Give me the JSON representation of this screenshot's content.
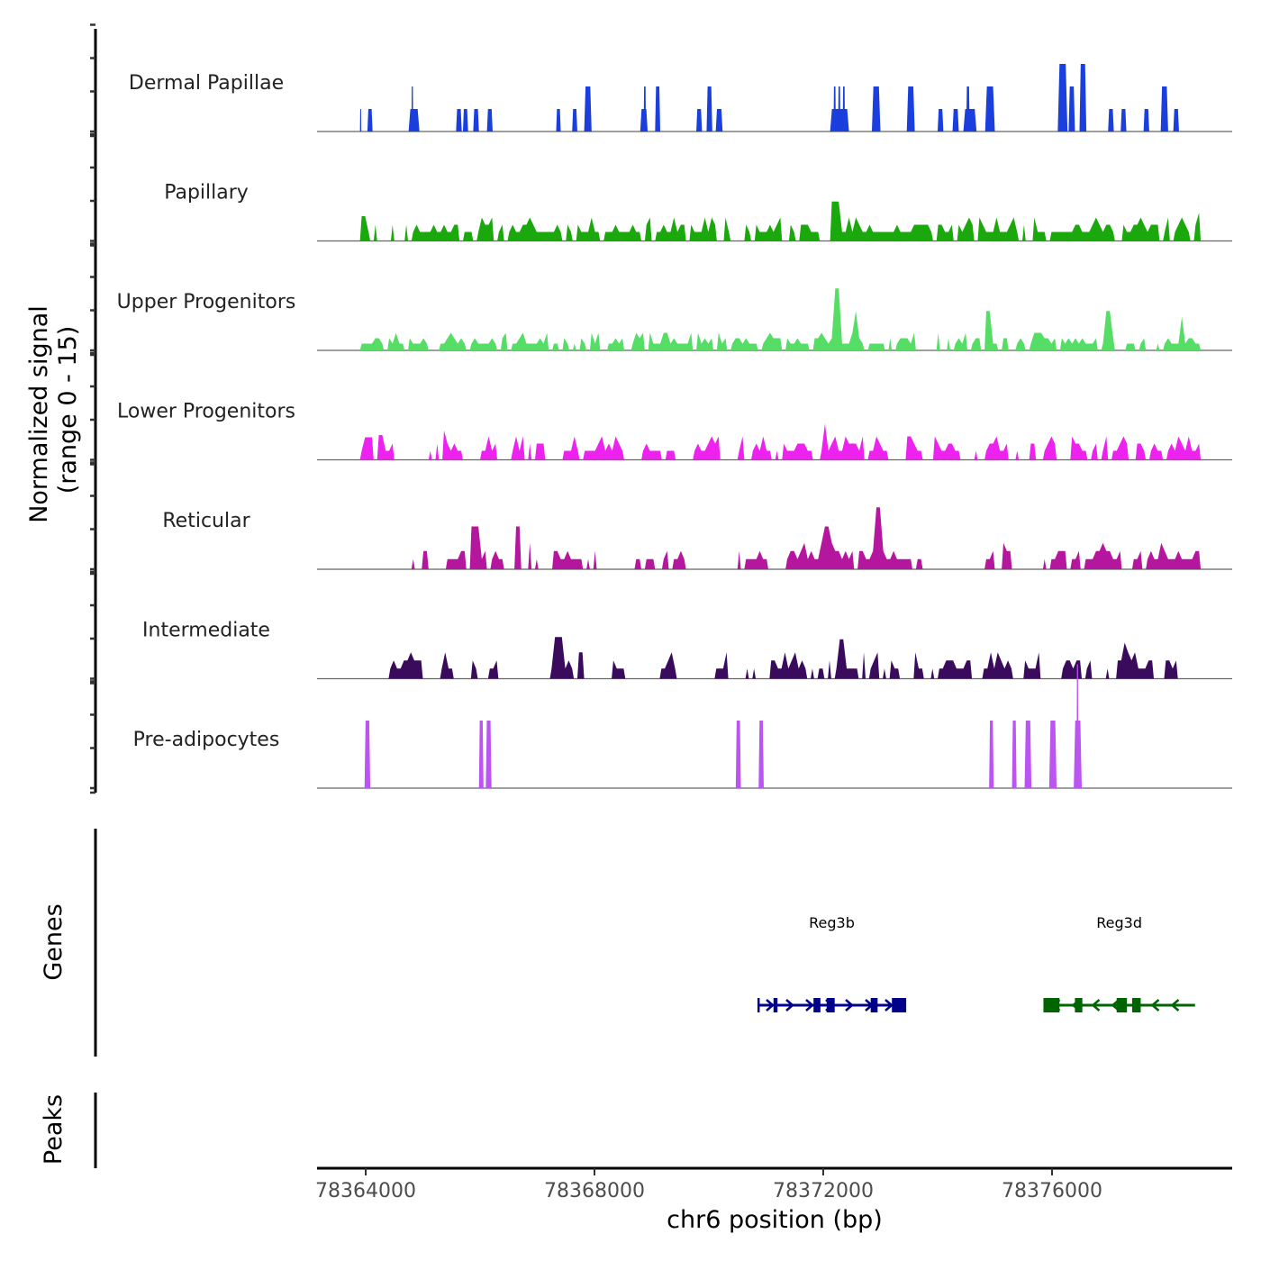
{
  "chart_data": {
    "type": "area",
    "title": "",
    "xlabel": "chr6 position (bp)",
    "ylabel_line1": "Normalized signal",
    "ylabel_line2": "(range 0 - 15)",
    "ylim": [
      0,
      15
    ],
    "xlim": [
      78363150,
      78379150
    ],
    "x_ticks": [
      78364000,
      78368000,
      78372000,
      78376000
    ],
    "x_tick_labels": [
      "78364000",
      "78368000",
      "78372000",
      "78376000"
    ],
    "grid": false,
    "panel_labels": {
      "genes": "Genes",
      "peaks": "Peaks"
    },
    "tracks": [
      {
        "name": "Dermal Papillae",
        "color": "#1a3fdc",
        "peaks": [
          [
            78363900,
            78363920,
            2.0
          ],
          [
            78364030,
            78364120,
            2.0
          ],
          [
            78364750,
            78364940,
            2.0
          ],
          [
            78364800,
            78364830,
            4.0
          ],
          [
            78365580,
            78365680,
            2.0
          ],
          [
            78365700,
            78365790,
            2.0
          ],
          [
            78365880,
            78365980,
            2.0
          ],
          [
            78366120,
            78366220,
            2.0
          ],
          [
            78367330,
            78367410,
            2.0
          ],
          [
            78367610,
            78367700,
            2.0
          ],
          [
            78367820,
            78367950,
            4.0
          ],
          [
            78368800,
            78368930,
            2.0
          ],
          [
            78368860,
            78368900,
            4.0
          ],
          [
            78369060,
            78369150,
            4.0
          ],
          [
            78369780,
            78369880,
            2.0
          ],
          [
            78369960,
            78370060,
            4.0
          ],
          [
            78370120,
            78370240,
            2.0
          ],
          [
            78372120,
            78372450,
            2.0
          ],
          [
            78372180,
            78372220,
            4.0
          ],
          [
            78372260,
            78372300,
            4.0
          ],
          [
            78372340,
            78372380,
            4.0
          ],
          [
            78372850,
            78373000,
            4.0
          ],
          [
            78373460,
            78373600,
            4.0
          ],
          [
            78374000,
            78374100,
            2.0
          ],
          [
            78374260,
            78374370,
            2.0
          ],
          [
            78374450,
            78374680,
            2.0
          ],
          [
            78374500,
            78374560,
            4.0
          ],
          [
            78374830,
            78375000,
            4.0
          ],
          [
            78376100,
            78376270,
            6.0
          ],
          [
            78376290,
            78376400,
            4.0
          ],
          [
            78376480,
            78376600,
            6.0
          ],
          [
            78376980,
            78377080,
            2.0
          ],
          [
            78377200,
            78377300,
            2.0
          ],
          [
            78377600,
            78377700,
            2.0
          ],
          [
            78377900,
            78378030,
            4.0
          ],
          [
            78378120,
            78378220,
            2.0
          ]
        ]
      },
      {
        "name": "Papillary",
        "color": "#1aa80c",
        "profile_seed": 11,
        "range": [
          78363900,
          78378600
        ],
        "baseline_level": 0.8,
        "max_level": 3.5,
        "gaps": [
          [
            78364150,
            78364400
          ],
          [
            78364560,
            78364680
          ],
          [
            78370100,
            78370260
          ],
          [
            78370380,
            78370580
          ],
          [
            78371280,
            78371350
          ]
        ],
        "highlights": [
          [
            78372100,
            78372250,
            3.5
          ],
          [
            78363900,
            78364000,
            2.2
          ],
          [
            78378500,
            78378560,
            2.5
          ]
        ]
      },
      {
        "name": "Upper Progenitors",
        "color": "#55dd66",
        "profile_seed": 23,
        "range": [
          78363900,
          78378600
        ],
        "baseline_level": 0.6,
        "max_level": 5.5,
        "gaps": [
          [
            78364300,
            78364380
          ],
          [
            78365050,
            78365180
          ],
          [
            78368500,
            78368620
          ],
          [
            78373600,
            78373950
          ],
          [
            78375200,
            78375350
          ],
          [
            78377600,
            78377780
          ]
        ],
        "highlights": [
          [
            78372150,
            78372250,
            5.5
          ],
          [
            78372500,
            78372600,
            3.5
          ],
          [
            78374800,
            78374900,
            3.5
          ],
          [
            78376900,
            78377000,
            3.5
          ],
          [
            78378200,
            78378300,
            3.0
          ]
        ]
      },
      {
        "name": "Lower Progenitors",
        "color": "#ee22ee",
        "profile_seed": 37,
        "range": [
          78363900,
          78378600
        ],
        "baseline_level": 0.8,
        "max_level": 3.2,
        "gaps": [
          [
            78364500,
            78365100
          ],
          [
            78365700,
            78365900
          ],
          [
            78366300,
            78366500
          ],
          [
            78367100,
            78367400
          ],
          [
            78368500,
            78368800
          ],
          [
            78369400,
            78369700
          ],
          [
            78370200,
            78370500
          ],
          [
            78370600,
            78370700
          ],
          [
            78373100,
            78373400
          ],
          [
            78373700,
            78373900
          ],
          [
            78374400,
            78374600
          ],
          [
            78375400,
            78375600
          ],
          [
            78376100,
            78376300
          ],
          [
            78377300,
            78377400
          ],
          [
            78377900,
            78378000
          ]
        ],
        "highlights": [
          [
            78371950,
            78372050,
            3.2
          ],
          [
            78363950,
            78364100,
            2.0
          ],
          [
            78364150,
            78364300,
            2.2
          ],
          [
            78365300,
            78365400,
            2.6
          ]
        ]
      },
      {
        "name": "Reticular",
        "color": "#b5169e",
        "profile_seed": 53,
        "range": [
          78364800,
          78378600
        ],
        "baseline_level": 0.9,
        "max_level": 5.5,
        "gaps": [
          [
            78365100,
            78365400
          ],
          [
            78366400,
            78366800
          ],
          [
            78367000,
            78367250
          ],
          [
            78368000,
            78368700
          ],
          [
            78369600,
            78370500
          ],
          [
            78371000,
            78371300
          ],
          [
            78373700,
            78374800
          ],
          [
            78375300,
            78375800
          ],
          [
            78377200,
            78377400
          ]
        ],
        "highlights": [
          [
            78365800,
            78366000,
            3.8
          ],
          [
            78366600,
            78366700,
            3.8
          ],
          [
            78372900,
            78373000,
            5.5
          ],
          [
            78372000,
            78372100,
            3.8
          ]
        ]
      },
      {
        "name": "Intermediate",
        "color": "#3a0a5c",
        "profile_seed": 71,
        "range": [
          78364400,
          78378200
        ],
        "baseline_level": 0.9,
        "max_level": 3.7,
        "gaps": [
          [
            78365000,
            78365200
          ],
          [
            78365500,
            78365800
          ],
          [
            78365950,
            78366100
          ],
          [
            78366300,
            78367200
          ],
          [
            78367900,
            78368250
          ],
          [
            78368500,
            78369100
          ],
          [
            78369400,
            78370100
          ],
          [
            78370400,
            78370600
          ],
          [
            78370800,
            78371050
          ],
          [
            78373300,
            78373550
          ],
          [
            78374600,
            78374750
          ],
          [
            78375300,
            78375500
          ],
          [
            78375800,
            78376150
          ],
          [
            78376700,
            78376900
          ],
          [
            78377800,
            78377950
          ]
        ],
        "highlights": [
          [
            78367250,
            78367450,
            3.7
          ],
          [
            78372250,
            78372350,
            3.5
          ],
          [
            78377200,
            78377300,
            3.2
          ]
        ]
      },
      {
        "name": "Pre-adipocytes",
        "color": "#bb55f2",
        "peaks": [
          [
            78363980,
            78364080,
            6.0
          ],
          [
            78365980,
            78366060,
            6.0
          ],
          [
            78366100,
            78366200,
            6.0
          ],
          [
            78370470,
            78370560,
            6.0
          ],
          [
            78370870,
            78370960,
            6.0
          ],
          [
            78374900,
            78374980,
            6.0
          ],
          [
            78375300,
            78375380,
            6.0
          ],
          [
            78375520,
            78375640,
            6.0
          ],
          [
            78375950,
            78376080,
            6.0
          ],
          [
            78376380,
            78376520,
            6.0
          ],
          [
            78376430,
            78376460,
            11.0
          ]
        ]
      }
    ],
    "genes": [
      {
        "name": "Reg3b",
        "strand": "+",
        "color": "#00008b",
        "start": 78370850,
        "end": 78373450,
        "exons": [
          [
            78370850,
            78370870
          ],
          [
            78371130,
            78371200
          ],
          [
            78371830,
            78371950
          ],
          [
            78372060,
            78372200
          ],
          [
            78372830,
            78372950
          ],
          [
            78373200,
            78373450
          ]
        ]
      },
      {
        "name": "Reg3d",
        "strand": "-",
        "color": "#006400",
        "start": 78375850,
        "end": 78378500,
        "exons": [
          [
            78375850,
            78376130
          ],
          [
            78376400,
            78376530
          ],
          [
            78377130,
            78377310
          ],
          [
            78377400,
            78377550
          ]
        ]
      }
    ]
  }
}
